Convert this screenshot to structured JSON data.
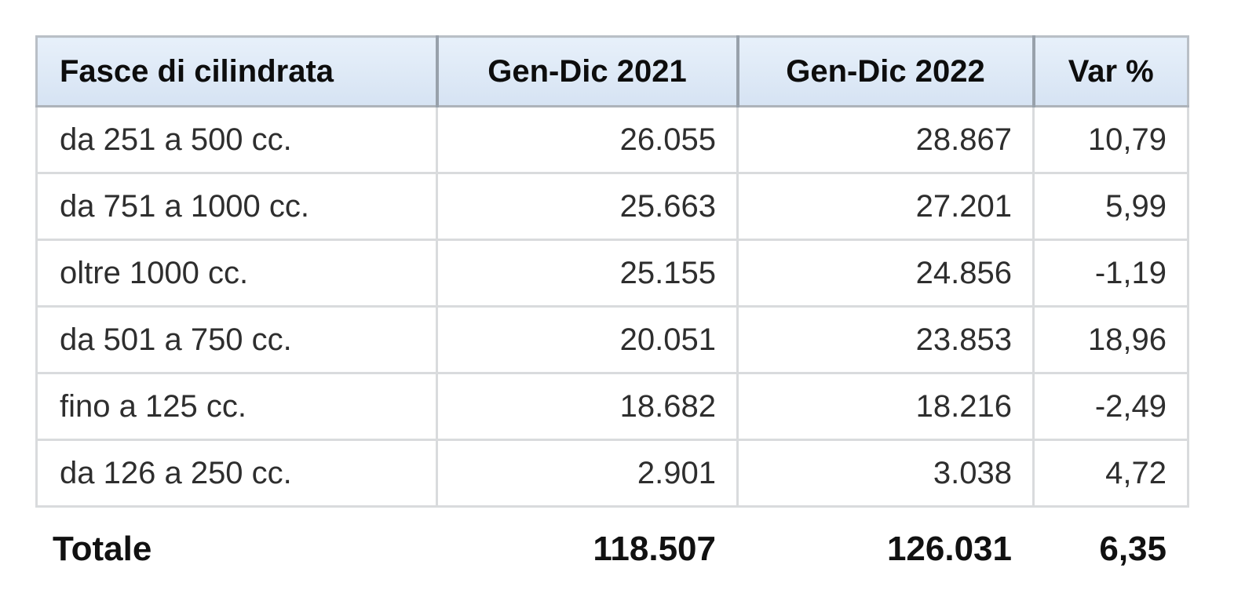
{
  "table": {
    "columns": [
      "Fasce di cilindrata",
      "Gen-Dic 2021",
      "Gen-Dic 2022",
      "Var %"
    ],
    "rows": [
      {
        "label": "da 251 a 500 cc.",
        "y2021": "26.055",
        "y2022": "28.867",
        "var": "10,79"
      },
      {
        "label": "da 751 a 1000 cc.",
        "y2021": "25.663",
        "y2022": "27.201",
        "var": "5,99"
      },
      {
        "label": "oltre 1000 cc.",
        "y2021": "25.155",
        "y2022": "24.856",
        "var": "-1,19"
      },
      {
        "label": "da 501 a 750 cc.",
        "y2021": "20.051",
        "y2022": "23.853",
        "var": "18,96"
      },
      {
        "label": "fino a 125 cc.",
        "y2021": "18.682",
        "y2022": "18.216",
        "var": "-2,49"
      },
      {
        "label": "da 126 a 250 cc.",
        "y2021": "2.901",
        "y2022": "3.038",
        "var": "4,72"
      }
    ],
    "total": {
      "label": "Totale",
      "y2021": "118.507",
      "y2022": "126.031",
      "var": "6,35"
    }
  },
  "colors": {
    "header_background": "#dbe7f5",
    "header_border": "#98a1ab",
    "body_border": "#d9dbdd",
    "text": "#2e2e2e"
  },
  "chart_data": {
    "type": "table",
    "columns": [
      "Fasce di cilindrata",
      "Gen-Dic 2021",
      "Gen-Dic 2022",
      "Var %"
    ],
    "rows": [
      [
        "da 251 a 500 cc.",
        26055,
        28867,
        10.79
      ],
      [
        "da 751 a 1000 cc.",
        25663,
        27201,
        5.99
      ],
      [
        "oltre 1000 cc.",
        25155,
        24856,
        -1.19
      ],
      [
        "da 501 a 750 cc.",
        20051,
        23853,
        18.96
      ],
      [
        "fino a 125 cc.",
        18682,
        18216,
        -2.49
      ],
      [
        "da 126 a 250 cc.",
        2901,
        3038,
        4.72
      ]
    ],
    "total_row": [
      "Totale",
      118507,
      126031,
      6.35
    ]
  }
}
